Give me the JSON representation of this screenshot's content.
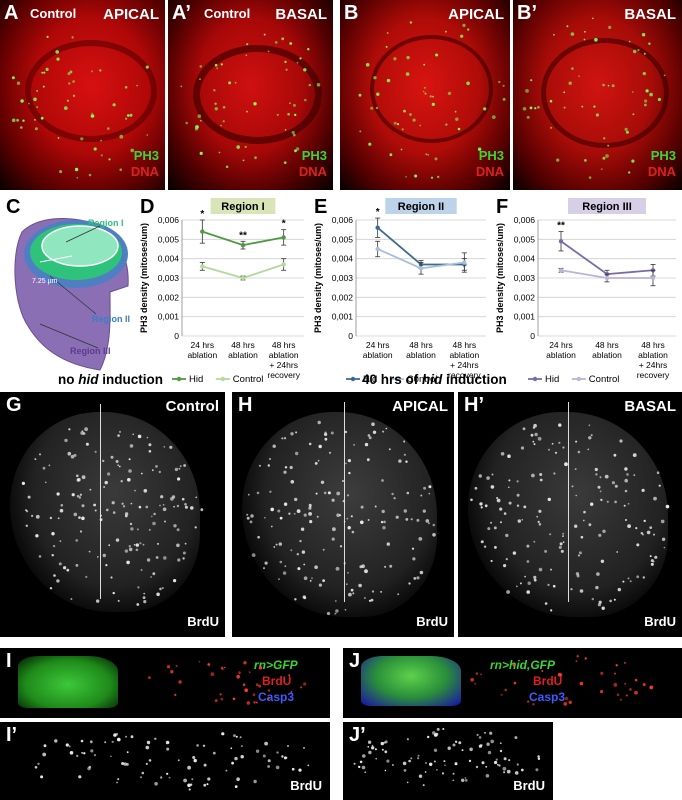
{
  "panels": {
    "A": {
      "letter": "A",
      "sub": "Control",
      "pos": "APICAL"
    },
    "A2": {
      "letter": "A’",
      "sub": "Control",
      "pos": "BASAL"
    },
    "B": {
      "letter": "B",
      "pos": "APICAL"
    },
    "B2": {
      "letter": "B’",
      "pos": "BASAL"
    },
    "stain_ph3": "PH3",
    "stain_dna": "DNA",
    "C": {
      "letter": "C",
      "region1": "Region I",
      "region2": "Region II",
      "region3": "Region III",
      "scale": "7.25 µm"
    },
    "G": {
      "letter": "G",
      "label": "Control",
      "stain": "BrdU"
    },
    "H": {
      "letter": "H",
      "label": "APICAL",
      "stain": "BrdU"
    },
    "H2": {
      "letter": "H’",
      "label": "BASAL",
      "stain": "BrdU"
    },
    "I": {
      "letter": "I",
      "l1": "rn>GFP",
      "l2": "BrdU",
      "l3": "Casp3"
    },
    "I2": {
      "letter": "I’",
      "stain": "BrdU"
    },
    "J": {
      "letter": "J",
      "l1": "rn>hid,GFP",
      "l2": "BrdU",
      "l3": "Casp3"
    },
    "J2": {
      "letter": "J’",
      "stain": "BrdU"
    }
  },
  "headings": {
    "left_pre": "no ",
    "left_em": "hid",
    "left_post": " induction",
    "right_pre": "40 hrs of ",
    "right_em": "hid",
    "right_post": " induction"
  },
  "colors": {
    "hid_I": "#4d9a3f",
    "control_I": "#b3d99c",
    "hid_II": "#3d6b8f",
    "control_II": "#a9bddb",
    "hid_III": "#7b6aa8",
    "control_III": "#bdb3d6",
    "region_I_bg": "#d9e5b8",
    "region_II_bg": "#bcd3ea",
    "region_III_bg": "#d6cfe6"
  },
  "chart_data": [
    {
      "panel": "D",
      "type": "line",
      "title": "Region I",
      "ylabel": "PH3 density (mitoses/um)",
      "ylim": [
        0,
        0.006
      ],
      "yticks": [
        "0",
        "0,001",
        "0,002",
        "0,003",
        "0,004",
        "0,005",
        "0,006"
      ],
      "categories": [
        "24 hrs\nablation",
        "48 hrs\nablation",
        "48 hrs\nablation\n+ 24hrs\nrecovery"
      ],
      "series": [
        {
          "name": "Hid",
          "values": [
            0.0054,
            0.0047,
            0.0051
          ],
          "err": [
            0.0006,
            0.0002,
            0.0004
          ]
        },
        {
          "name": "Control",
          "values": [
            0.0036,
            0.003,
            0.0037
          ],
          "err": [
            0.0002,
            0.0001,
            0.0003
          ]
        }
      ],
      "annotations": [
        "*",
        "**",
        "*"
      ]
    },
    {
      "panel": "E",
      "type": "line",
      "title": "Region II",
      "ylabel": "PH3 density (mitoses/um)",
      "ylim": [
        0,
        0.006
      ],
      "yticks": [
        "0",
        "0,001",
        "0,002",
        "0,003",
        "0,004",
        "0,005",
        "0,006"
      ],
      "categories": [
        "24 hrs\nablation",
        "48 hrs\nablation",
        "48 hrs\nablation\n+ 24hrs\nrecovery"
      ],
      "series": [
        {
          "name": "Hid",
          "values": [
            0.0056,
            0.0037,
            0.0037
          ],
          "err": [
            0.0005,
            0.0002,
            0.0003
          ]
        },
        {
          "name": "Control",
          "values": [
            0.0045,
            0.0035,
            0.0038
          ],
          "err": [
            0.0004,
            0.0003,
            0.0005
          ]
        }
      ],
      "annotations": [
        "*",
        "",
        ""
      ]
    },
    {
      "panel": "F",
      "type": "line",
      "title": "Region III",
      "ylabel": "PH3 density (mitoses/um)",
      "ylim": [
        0,
        0.006
      ],
      "yticks": [
        "0",
        "0,001",
        "0,002",
        "0,003",
        "0,004",
        "0,005",
        "0,006"
      ],
      "categories": [
        "24 hrs\nablation",
        "48 hrs\nablation",
        "48 hrs\nablation\n+ 24hrs\nrecovery"
      ],
      "series": [
        {
          "name": "Hid",
          "values": [
            0.0049,
            0.0032,
            0.0034
          ],
          "err": [
            0.0005,
            0.0002,
            0.0003
          ]
        },
        {
          "name": "Control",
          "values": [
            0.0034,
            0.003,
            0.003
          ],
          "err": [
            0.0001,
            0.0002,
            0.0004
          ]
        }
      ],
      "annotations": [
        "**",
        "",
        ""
      ]
    }
  ]
}
